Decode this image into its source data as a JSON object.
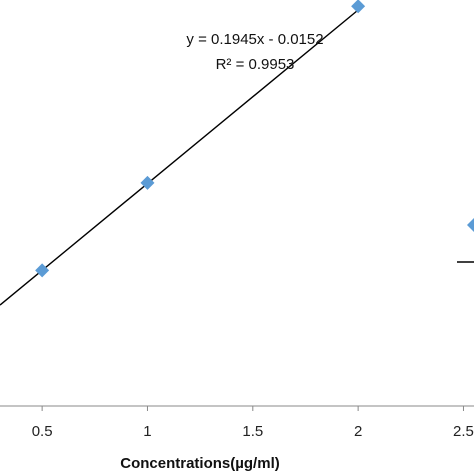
{
  "chart_data": {
    "type": "scatter",
    "title": "",
    "xlabel": "Concentrations(µg/ml)",
    "ylabel": "",
    "xlim": [
      0.3,
      2.55
    ],
    "ylim": [
      -0.07,
      0.385
    ],
    "x_ticks": [
      "0.5",
      "1",
      "1.5",
      "2",
      "2.5"
    ],
    "grid": false,
    "legend": "none",
    "series": [
      {
        "marker": "diamond",
        "color": "#5b9bd5",
        "x": [
          0.5,
          1,
          2
        ],
        "y": [
          0.082,
          0.18,
          0.378
        ]
      }
    ],
    "trendline": {
      "slope": 0.1945,
      "intercept": -0.0152,
      "color": "#000000",
      "equation": "y = 0.1945x - 0.0152",
      "r_squared": "R² = 0.9953"
    },
    "partial_marker_color": "#5b9bd5"
  }
}
